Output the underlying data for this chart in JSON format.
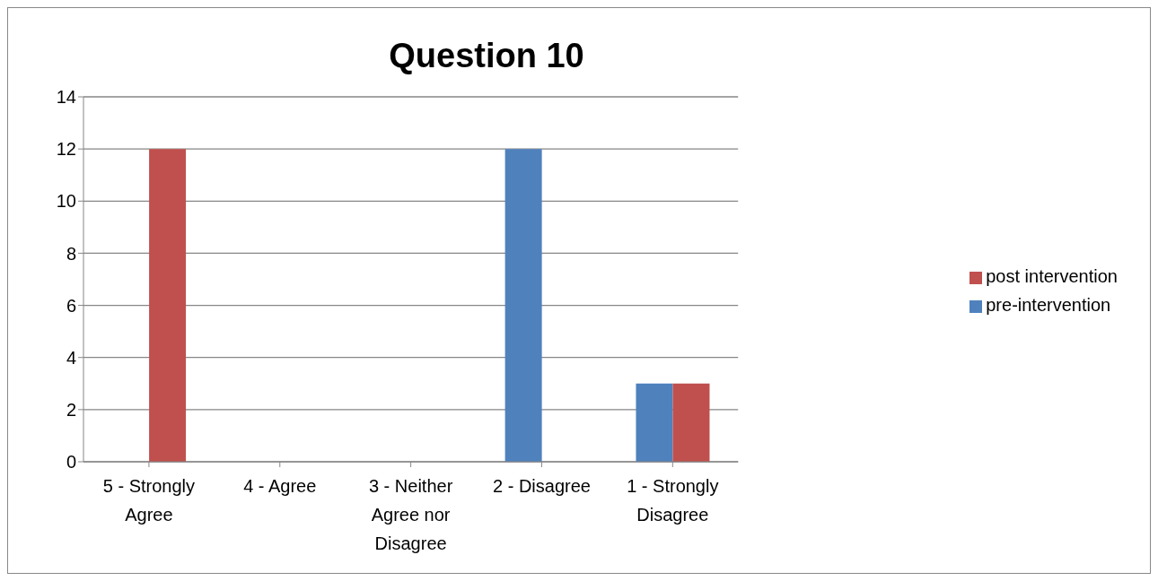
{
  "chart_data": {
    "type": "bar",
    "title": "Question 10",
    "categories": [
      "5 - Strongly Agree",
      "4 - Agree",
      "3 - Neither Agree nor Disagree",
      "2 - Disagree",
      "1 - Strongly Disagree"
    ],
    "series": [
      {
        "name": "pre-intervention",
        "color": "#4f81bd",
        "values": [
          0,
          0,
          0,
          12,
          3
        ]
      },
      {
        "name": "post intervention",
        "color": "#c0504d",
        "values": [
          12,
          0,
          0,
          0,
          3
        ]
      }
    ],
    "ylim": [
      0,
      14
    ],
    "yticks": [
      0,
      2,
      4,
      6,
      8,
      10,
      12,
      14
    ],
    "grid": "y",
    "legend": "right"
  }
}
